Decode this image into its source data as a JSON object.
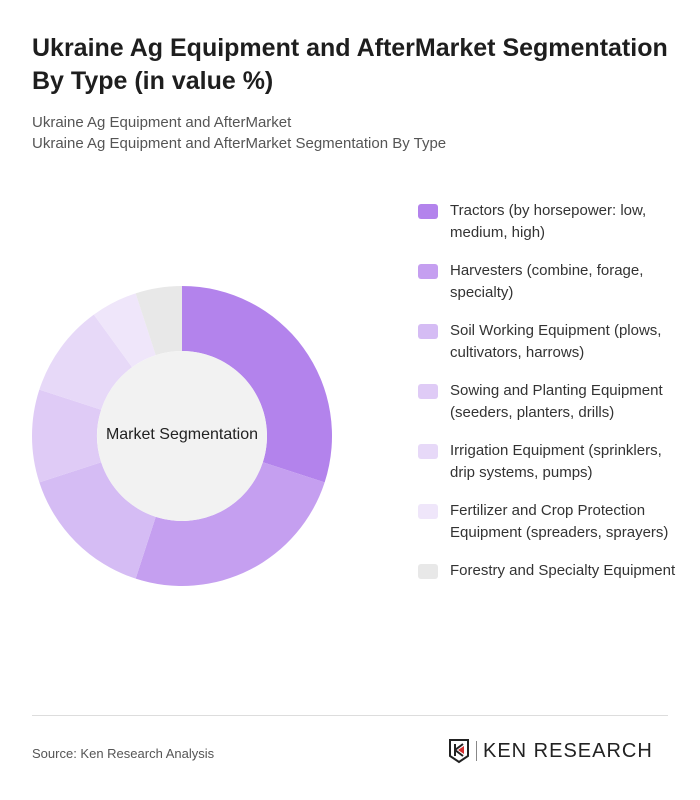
{
  "title": "Ukraine Ag Equipment and AfterMarket Segmentation By Type (in value %)",
  "subtitle_1": "Ukraine Ag Equipment and AfterMarket",
  "subtitle_2": "Ukraine Ag Equipment and AfterMarket Segmentation By Type",
  "footer": {
    "source": "Source: Ken Research Analysis",
    "logo": "KEN RESEARCH"
  },
  "chart_data": {
    "type": "pie",
    "donut": true,
    "center_label": "Market Segmentation",
    "legend_position": "right",
    "unit": "%",
    "slices": [
      {
        "label": "Tractors (by horsepower: low, medium, high)",
        "value": 30,
        "color": "#b383ec"
      },
      {
        "label": "Harvesters (combine, forage, specialty)",
        "value": 25,
        "color": "#c59ff0"
      },
      {
        "label": "Soil Working Equipment (plows, cultivators, harrows)",
        "value": 15,
        "color": "#d5bcf4"
      },
      {
        "label": "Sowing and Planting Equipment (seeders, planters, drills)",
        "value": 10,
        "color": "#dfcbf6"
      },
      {
        "label": "Irrigation Equipment (sprinklers, drip systems, pumps)",
        "value": 10,
        "color": "#e7d9f8"
      },
      {
        "label": "Fertilizer and Crop Protection Equipment (spreaders, sprayers)",
        "value": 5,
        "color": "#efe6fa"
      },
      {
        "label": "Forestry and Specialty Equipment",
        "value": 5,
        "color": "#e8e8e8"
      }
    ]
  }
}
